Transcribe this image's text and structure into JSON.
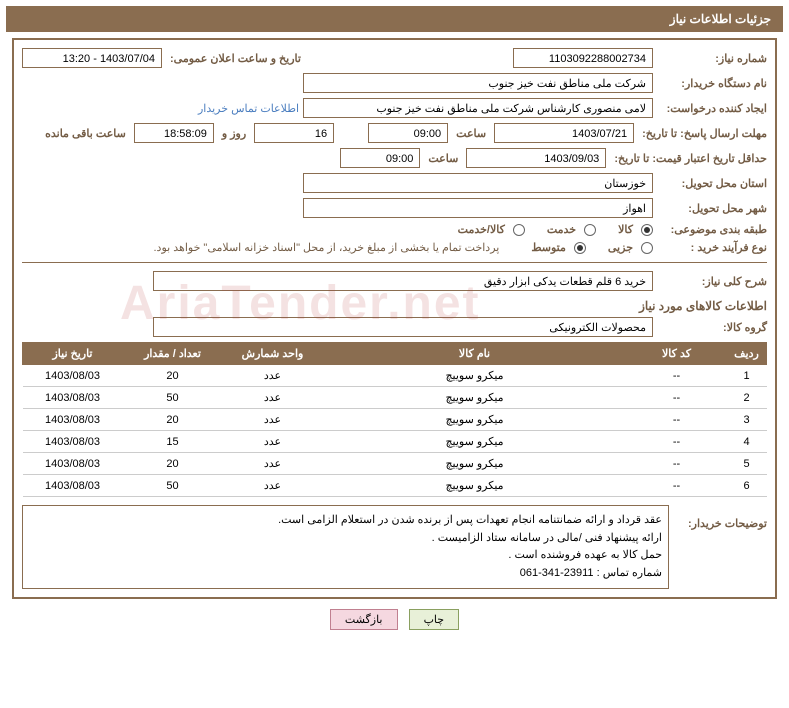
{
  "header": "جزئیات اطلاعات نیاز",
  "labels": {
    "need_no": "شماره نیاز:",
    "ann_dt": "تاریخ و ساعت اعلان عمومی:",
    "buyer_org": "نام دستگاه خریدار:",
    "requester": "ایجاد کننده درخواست:",
    "contact_link": "اطلاعات تماس خریدار",
    "reply_deadline": "مهلت ارسال پاسخ: تا تاریخ:",
    "time": "ساعت",
    "days_and": "روز و",
    "hours_left": "ساعت باقی مانده",
    "price_valid": "حداقل تاریخ اعتبار قیمت: تا تاریخ:",
    "deliv_prov": "استان محل تحویل:",
    "deliv_city": "شهر محل تحویل:",
    "subject_cat": "طبقه بندی موضوعی:",
    "buy_type": "نوع فرآیند خرید :",
    "need_desc": "شرح کلی نیاز:",
    "items_info": "اطلاعات کالاهای مورد نیاز",
    "goods_group": "گروه کالا:",
    "buyer_notes": "توضیحات خریدار:"
  },
  "fields": {
    "need_no": "1103092288002734",
    "ann_dt": "1403/07/04 - 13:20",
    "buyer_org": "شرکت ملی مناطق نفت خیز جنوب",
    "requester": "لامی منصوری کارشناس شرکت ملی مناطق نفت خیز جنوب",
    "reply_date": "1403/07/21",
    "reply_time": "09:00",
    "days_left": "16",
    "hours_left": "18:58:09",
    "price_date": "1403/09/03",
    "price_time": "09:00",
    "province": "خوزستان",
    "city": "اهواز",
    "need_desc": "خرید 6 قلم قطعات یدکی ابزار دقیق",
    "goods_group": "محصولات الکترونیکی",
    "pay_note": "پرداخت تمام یا بخشی از مبلغ خرید، از محل \"اسناد خزانه اسلامی\" خواهد بود."
  },
  "radios": {
    "cat": [
      {
        "label": "کالا",
        "checked": true
      },
      {
        "label": "خدمت",
        "checked": false
      },
      {
        "label": "کالا/خدمت",
        "checked": false
      }
    ],
    "buy": [
      {
        "label": "جزیی",
        "checked": false
      },
      {
        "label": "متوسط",
        "checked": true
      }
    ]
  },
  "table": {
    "headers": [
      "ردیف",
      "کد کالا",
      "نام کالا",
      "واحد شمارش",
      "تعداد / مقدار",
      "تاریخ نیاز"
    ],
    "rows": [
      [
        "1",
        "--",
        "میکرو سوییچ",
        "عدد",
        "20",
        "1403/08/03"
      ],
      [
        "2",
        "--",
        "میکرو سوییچ",
        "عدد",
        "50",
        "1403/08/03"
      ],
      [
        "3",
        "--",
        "میکرو سوییچ",
        "عدد",
        "20",
        "1403/08/03"
      ],
      [
        "4",
        "--",
        "میکرو سوییچ",
        "عدد",
        "15",
        "1403/08/03"
      ],
      [
        "5",
        "--",
        "میکرو سوییچ",
        "عدد",
        "20",
        "1403/08/03"
      ],
      [
        "6",
        "--",
        "میکرو سوییچ",
        "عدد",
        "50",
        "1403/08/03"
      ]
    ],
    "col_widths": [
      "40px",
      "100px",
      "auto",
      "100px",
      "100px",
      "100px"
    ]
  },
  "notes": [
    "عقد قرداد و ارائه ضمانتنامه انجام تعهدات پس از برنده شدن در استعلام الزامی است.",
    "ارائه پیشنهاد فنی /مالی در سامانه ستاد الزامیست .",
    "حمل کالا به عهده فروشنده است .",
    "شماره تماس : 23911-341-061"
  ],
  "buttons": {
    "print": "چاپ",
    "back": "بازگشت"
  },
  "watermark": "AriaTender.net",
  "colors": {
    "brand": "#8a6d50",
    "label": "#735c45",
    "link": "#4a7dbf"
  }
}
